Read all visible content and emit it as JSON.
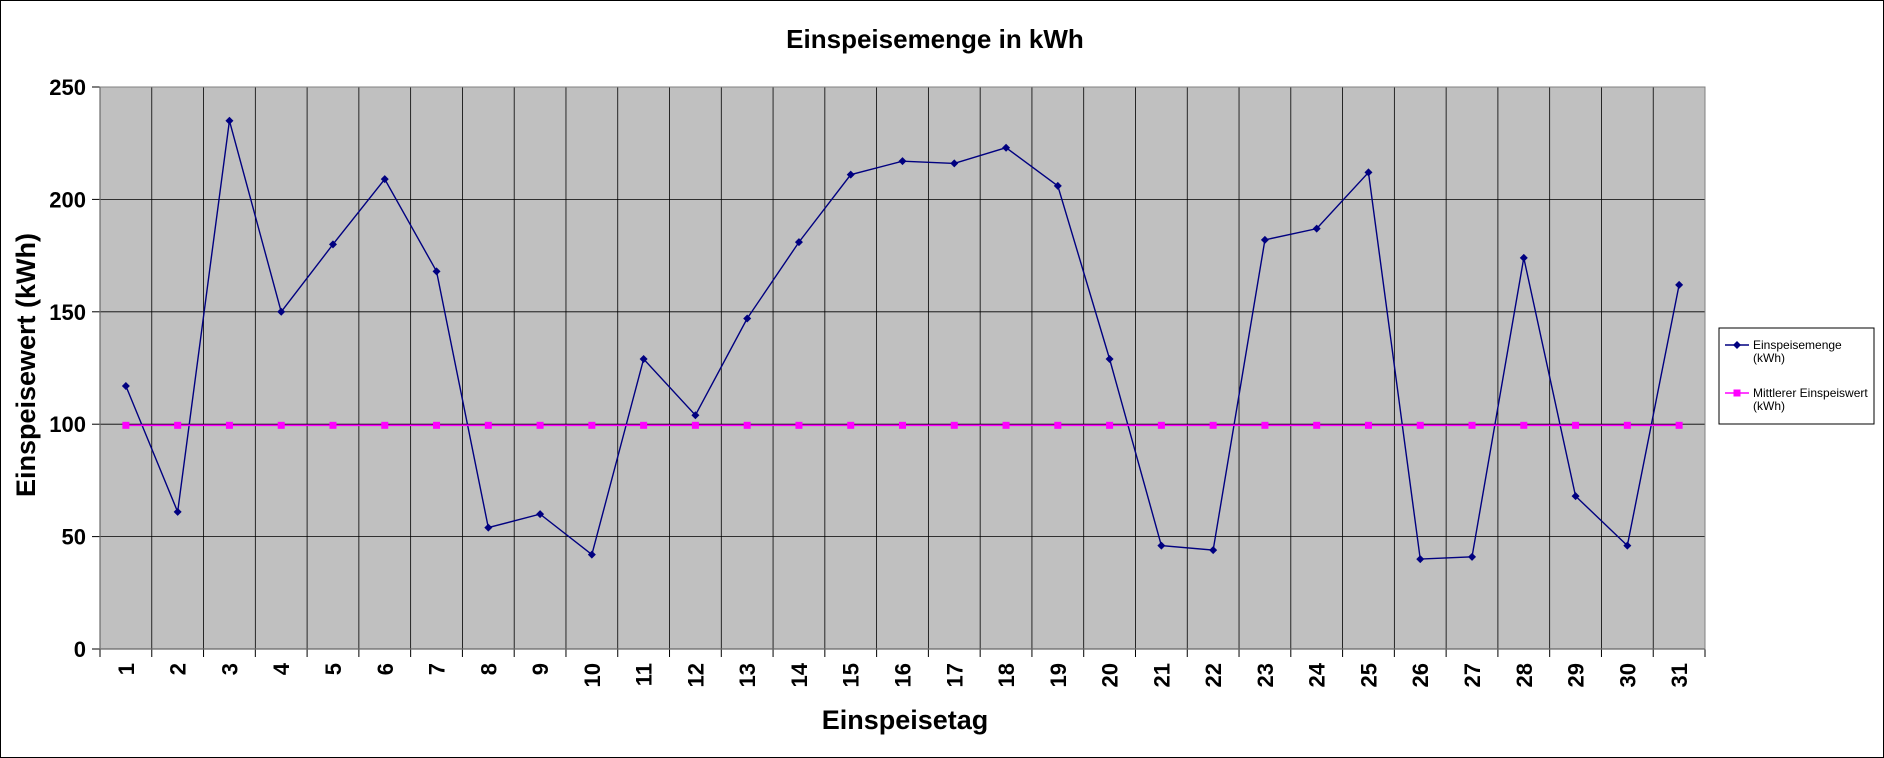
{
  "chart_data": {
    "type": "line",
    "title": "Einspeisemenge in kWh",
    "xlabel": "Einspeisetag",
    "ylabel": "Einspeisewert  (kWh)",
    "categories": [
      "1",
      "2",
      "3",
      "4",
      "5",
      "6",
      "7",
      "8",
      "9",
      "10",
      "11",
      "12",
      "13",
      "14",
      "15",
      "16",
      "17",
      "18",
      "19",
      "20",
      "21",
      "22",
      "23",
      "24",
      "25",
      "26",
      "27",
      "28",
      "29",
      "30",
      "31"
    ],
    "ylim": [
      0,
      250
    ],
    "yticks": [
      "0",
      "50",
      "100",
      "150",
      "200",
      "250"
    ],
    "grid": true,
    "legend_position": "right",
    "series": [
      {
        "name_lines": [
          "Einspeisemenge",
          "(kWh)"
        ],
        "color": "#000080",
        "marker": "diamond",
        "values": [
          117,
          61,
          235,
          150,
          180,
          209,
          168,
          54,
          60,
          42,
          129,
          104,
          147,
          181,
          211,
          217,
          216,
          223,
          206,
          129,
          46,
          44,
          182,
          187,
          212,
          40,
          41,
          174,
          68,
          46,
          162
        ]
      },
      {
        "name_lines": [
          "Mittlerer Einspeiswert",
          "(kWh)"
        ],
        "color": "#ff00ff",
        "marker": "square",
        "values": [
          99.5,
          99.5,
          99.5,
          99.5,
          99.5,
          99.5,
          99.5,
          99.5,
          99.5,
          99.5,
          99.5,
          99.5,
          99.5,
          99.5,
          99.5,
          99.5,
          99.5,
          99.5,
          99.5,
          99.5,
          99.5,
          99.5,
          99.5,
          99.5,
          99.5,
          99.5,
          99.5,
          99.5,
          99.5,
          99.5,
          99.5
        ]
      }
    ],
    "colors": {
      "plot_background": "#c0c0c0",
      "grid": "#000000"
    }
  }
}
